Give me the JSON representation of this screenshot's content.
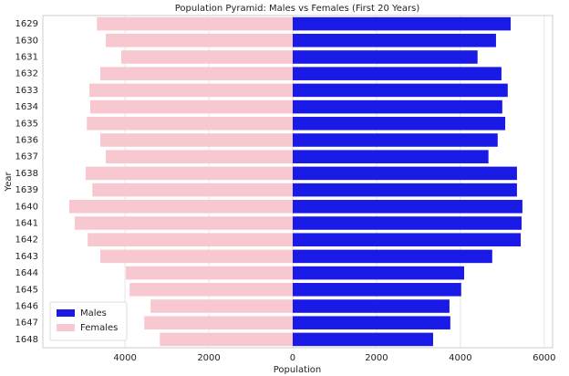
{
  "chart_data": {
    "type": "pyramid",
    "title": "Population Pyramid: Males vs Females (First 20 Years)",
    "x_label": "Population",
    "y_label": "Year",
    "categories": [
      "1629",
      "1630",
      "1631",
      "1632",
      "1633",
      "1634",
      "1635",
      "1636",
      "1637",
      "1638",
      "1639",
      "1640",
      "1641",
      "1642",
      "1643",
      "1644",
      "1645",
      "1646",
      "1647",
      "1648"
    ],
    "series": [
      {
        "name": "Males",
        "color": "#1a1ae6",
        "values": [
          5200,
          4850,
          4410,
          4980,
          5130,
          5000,
          5070,
          4890,
          4670,
          5350,
          5350,
          5480,
          5460,
          5440,
          4760,
          4090,
          4020,
          3740,
          3760,
          3350
        ]
      },
      {
        "name": "Females",
        "color": "#f8c8d0",
        "values": [
          -4670,
          -4460,
          -4090,
          -4590,
          -4850,
          -4830,
          -4910,
          -4590,
          -4460,
          -4940,
          -4780,
          -5330,
          -5200,
          -4890,
          -4590,
          -3980,
          -3890,
          -3390,
          -3540,
          -3170
        ]
      }
    ],
    "xlim": [
      -5960,
      6200
    ],
    "xticks": [
      {
        "value": -4000,
        "label": "4000"
      },
      {
        "value": -2000,
        "label": "2000"
      },
      0,
      2000,
      4000,
      6000
    ],
    "grid": true,
    "legend": "lower left"
  }
}
